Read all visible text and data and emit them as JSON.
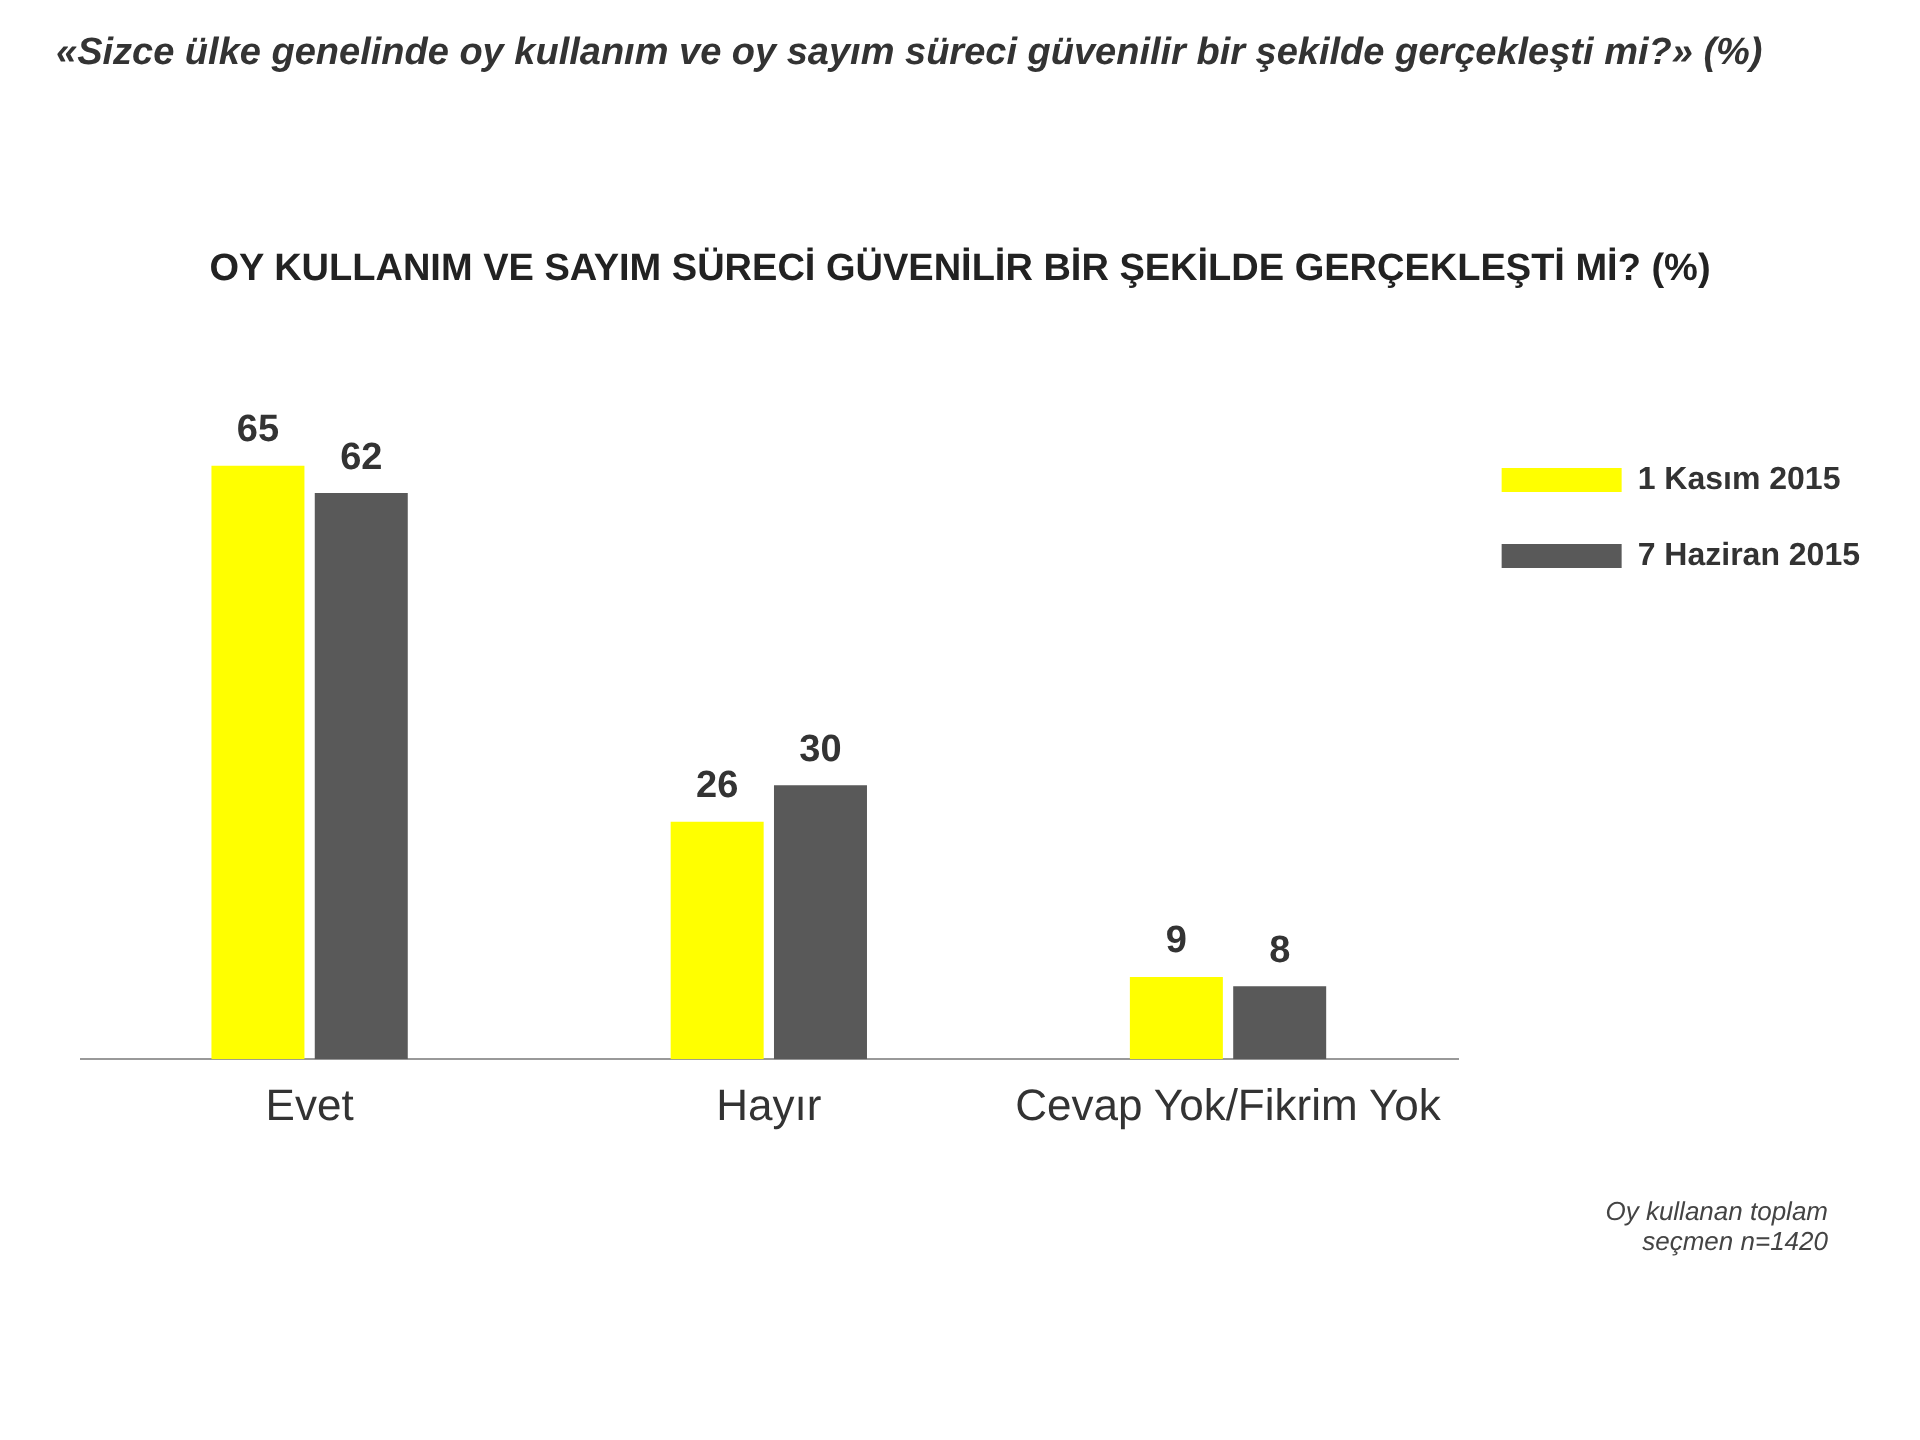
{
  "chart_data": {
    "type": "bar",
    "title": "«Sizce ülke genelinde oy kullanım ve oy sayım süreci güvenilir bir şekilde gerçekleşti mi?» (%)",
    "subtitle": "OY KULLANIM VE SAYIM SÜRECİ GÜVENİLİR BİR ŞEKİLDE GERÇEKLEŞTİ Mİ? (%)",
    "categories": [
      "Evet",
      "Hayır",
      "Cevap Yok/Fikrim Yok"
    ],
    "series": [
      {
        "name": "1 Kasım 2015",
        "color": "#ffff00",
        "values": [
          65,
          26,
          9
        ]
      },
      {
        "name": "7 Haziran 2015",
        "color": "#595959",
        "values": [
          62,
          30,
          8
        ]
      }
    ],
    "data_labels": true,
    "legend": "right",
    "grid": false,
    "annotations": [
      "Oy kullanan toplam seçmen n=1420"
    ]
  }
}
